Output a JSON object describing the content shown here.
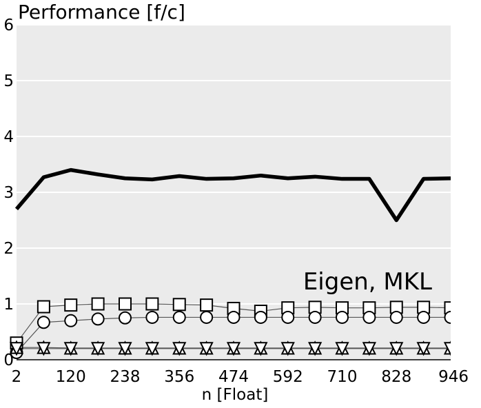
{
  "chart_data": {
    "type": "line",
    "title": "Performance [f/c]",
    "xlabel": "n [Float]",
    "ylabel": "",
    "annotation": "Eigen, MKL",
    "x_ticks": [
      "2",
      "120",
      "238",
      "356",
      "474",
      "592",
      "710",
      "828",
      "946"
    ],
    "y_ticks": [
      "0",
      "1",
      "2",
      "3",
      "4",
      "5",
      "6"
    ],
    "xlim": [
      2,
      946
    ],
    "ylim": [
      0,
      6
    ],
    "grid": true,
    "x": [
      2,
      61,
      120,
      179,
      238,
      297,
      356,
      415,
      474,
      533,
      592,
      651,
      710,
      769,
      828,
      887,
      946
    ],
    "series": [
      {
        "marker": "none",
        "values": [
          2.7,
          3.27,
          3.4,
          3.32,
          3.25,
          3.23,
          3.29,
          3.24,
          3.25,
          3.3,
          3.25,
          3.28,
          3.24,
          3.24,
          2.5,
          3.24,
          3.25
        ]
      },
      {
        "marker": "square",
        "values": [
          0.3,
          0.95,
          0.98,
          1.0,
          1.0,
          1.0,
          0.99,
          0.98,
          0.92,
          0.87,
          0.93,
          0.94,
          0.93,
          0.93,
          0.94,
          0.94,
          0.93
        ]
      },
      {
        "marker": "circle",
        "values": [
          0.13,
          0.67,
          0.7,
          0.73,
          0.75,
          0.76,
          0.76,
          0.76,
          0.76,
          0.76,
          0.76,
          0.76,
          0.76,
          0.76,
          0.76,
          0.76,
          0.76
        ]
      },
      {
        "marker": "triangle-up",
        "values": [
          0.22,
          0.22,
          0.21,
          0.21,
          0.21,
          0.21,
          0.21,
          0.21,
          0.21,
          0.21,
          0.21,
          0.21,
          0.21,
          0.21,
          0.21,
          0.21,
          0.21
        ]
      },
      {
        "marker": "triangle-down",
        "values": [
          0.2,
          0.2,
          0.2,
          0.2,
          0.2,
          0.2,
          0.2,
          0.2,
          0.2,
          0.2,
          0.2,
          0.2,
          0.2,
          0.2,
          0.2,
          0.2,
          0.2
        ]
      }
    ]
  }
}
